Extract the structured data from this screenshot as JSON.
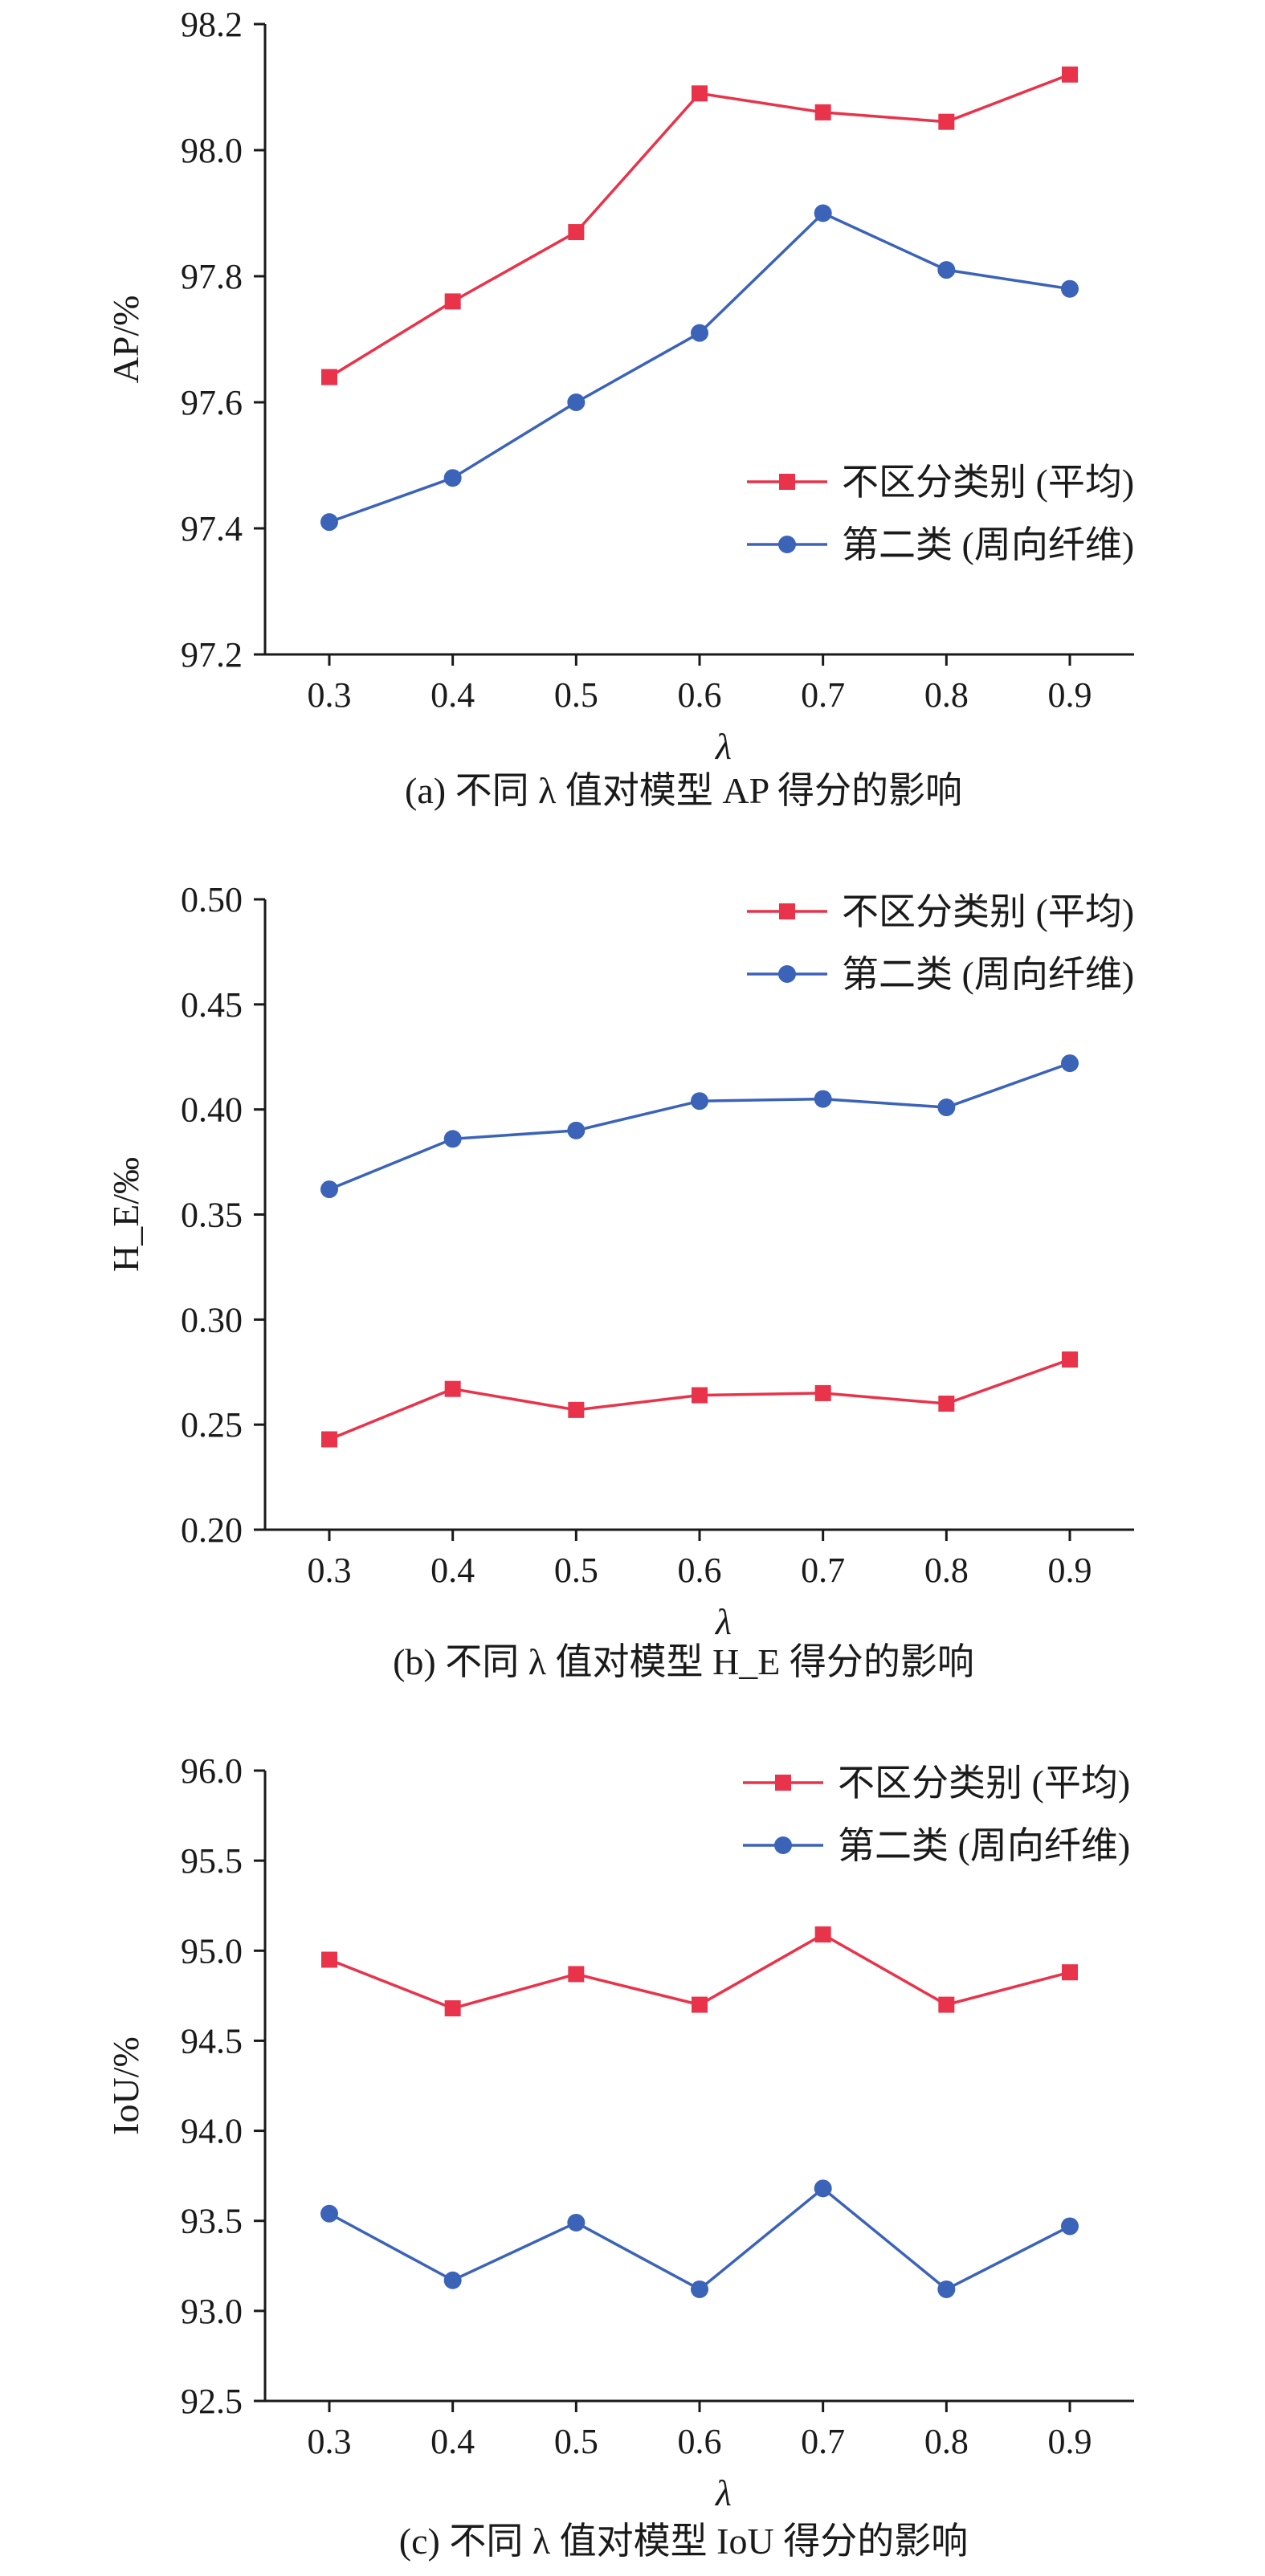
{
  "chart_data": [
    {
      "type": "line",
      "title": "(a) 不同 λ 值对模型 AP 得分的影响",
      "xlabel": "λ",
      "ylabel": "AP/%",
      "x": [
        0.3,
        0.4,
        0.5,
        0.6,
        0.7,
        0.8,
        0.9
      ],
      "x_tick_labels": [
        "0.3",
        "0.4",
        "0.5",
        "0.6",
        "0.7",
        "0.8",
        "0.9"
      ],
      "ylim": [
        97.2,
        98.2
      ],
      "y_ticks": [
        97.2,
        97.4,
        97.6,
        97.8,
        98.0,
        98.2
      ],
      "y_tick_labels": [
        "97.2",
        "97.4",
        "97.6",
        "97.8",
        "98.0",
        "98.2"
      ],
      "legend_position": "bottom-right",
      "series": [
        {
          "name": "不区分类别 (平均)",
          "color": "#e8334a",
          "marker": "square",
          "values": [
            97.64,
            97.76,
            97.87,
            98.09,
            98.06,
            98.045,
            98.12
          ]
        },
        {
          "name": "第二类 (周向纤维)",
          "color": "#3b63b8",
          "marker": "circle",
          "values": [
            97.41,
            97.48,
            97.6,
            97.71,
            97.9,
            97.81,
            97.78
          ]
        }
      ]
    },
    {
      "type": "line",
      "title": "(b) 不同 λ 值对模型 H_E 得分的影响",
      "xlabel": "λ",
      "ylabel": "H_E/‰",
      "x": [
        0.3,
        0.4,
        0.5,
        0.6,
        0.7,
        0.8,
        0.9
      ],
      "x_tick_labels": [
        "0.3",
        "0.4",
        "0.5",
        "0.6",
        "0.7",
        "0.8",
        "0.9"
      ],
      "ylim": [
        0.2,
        0.5
      ],
      "y_ticks": [
        0.2,
        0.25,
        0.3,
        0.35,
        0.4,
        0.45,
        0.5
      ],
      "y_tick_labels": [
        "0.20",
        "0.25",
        "0.30",
        "0.35",
        "0.40",
        "0.45",
        "0.50"
      ],
      "legend_position": "top-right",
      "series": [
        {
          "name": "不区分类别 (平均)",
          "color": "#e8334a",
          "marker": "square",
          "values": [
            0.243,
            0.267,
            0.257,
            0.264,
            0.265,
            0.26,
            0.281
          ]
        },
        {
          "name": "第二类 (周向纤维)",
          "color": "#3b63b8",
          "marker": "circle",
          "values": [
            0.362,
            0.386,
            0.39,
            0.404,
            0.405,
            0.401,
            0.422
          ]
        }
      ]
    },
    {
      "type": "line",
      "title": "(c) 不同 λ 值对模型 IoU 得分的影响",
      "xlabel": "λ",
      "ylabel": "IoU/%",
      "x": [
        0.3,
        0.4,
        0.5,
        0.6,
        0.7,
        0.8,
        0.9
      ],
      "x_tick_labels": [
        "0.3",
        "0.4",
        "0.5",
        "0.6",
        "0.7",
        "0.8",
        "0.9"
      ],
      "ylim": [
        92.5,
        96.0
      ],
      "y_ticks": [
        92.5,
        93.0,
        93.5,
        94.0,
        94.5,
        95.0,
        95.5,
        96.0
      ],
      "y_tick_labels": [
        "92.5",
        "93.0",
        "93.5",
        "94.0",
        "94.5",
        "95.0",
        "95.5",
        "96.0"
      ],
      "legend_position": "top-right",
      "series": [
        {
          "name": "不区分类别 (平均)",
          "color": "#e8334a",
          "marker": "square",
          "values": [
            94.95,
            94.68,
            94.87,
            94.7,
            95.09,
            94.7,
            94.88
          ]
        },
        {
          "name": "第二类 (周向纤维)",
          "color": "#3b63b8",
          "marker": "circle",
          "values": [
            93.54,
            93.17,
            93.49,
            93.12,
            93.68,
            93.12,
            93.47
          ]
        }
      ]
    }
  ]
}
